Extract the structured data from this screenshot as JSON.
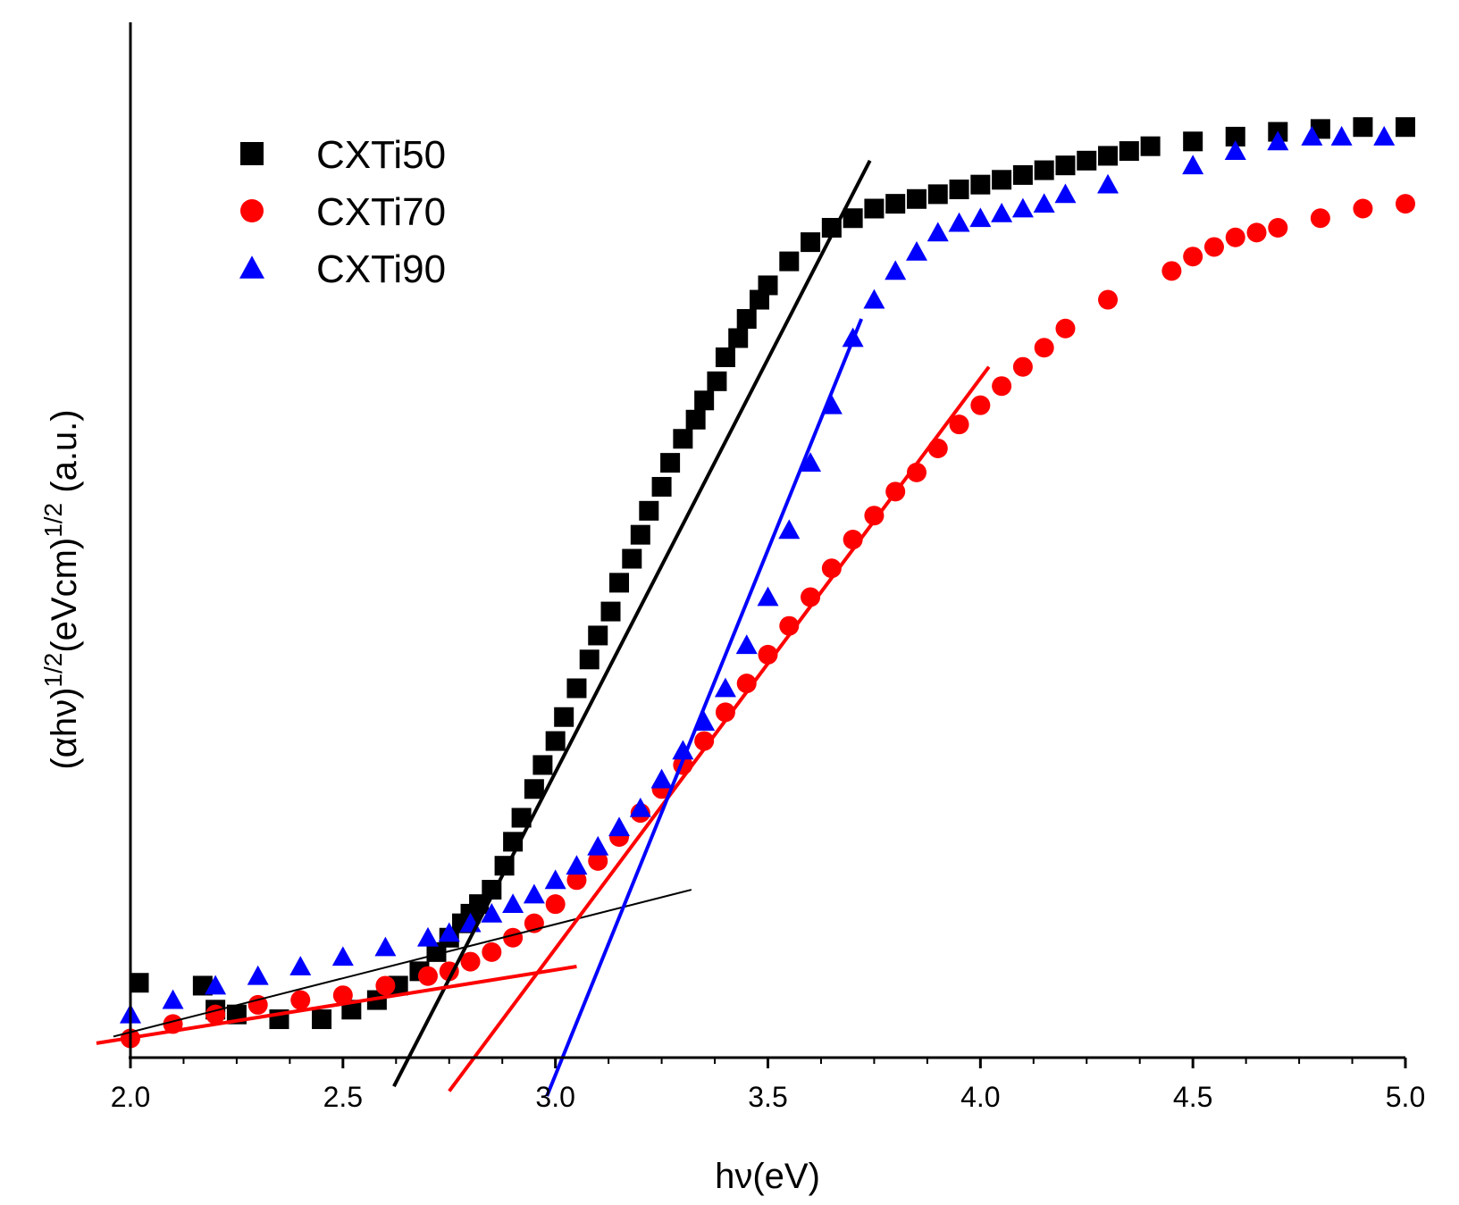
{
  "chart_data": {
    "type": "scatter",
    "title": "",
    "xlabel": "hν(eV)",
    "ylabel": "(αhν)1/2(eVcm)1/2 (a.u.)",
    "ylabel_parts": {
      "p1": "(αhν)",
      "s1": "1/2",
      "p2": "(eVcm)",
      "s2": "1/2",
      "p3": " (a.u.)"
    },
    "xlim": [
      2.0,
      5.0
    ],
    "ylim": [
      0,
      1.0
    ],
    "x_ticks": [
      "2.0",
      "2.5",
      "3.0",
      "3.5",
      "4.0",
      "4.5",
      "5.0"
    ],
    "y_ticks_shown": false,
    "grid": false,
    "legend_position": "top-left",
    "series": [
      {
        "name": "CXTi50",
        "marker": "square",
        "color": "#000000",
        "x": [
          2.02,
          2.17,
          2.2,
          2.25,
          2.35,
          2.45,
          2.52,
          2.58,
          2.63,
          2.68,
          2.72,
          2.75,
          2.78,
          2.8,
          2.82,
          2.85,
          2.88,
          2.9,
          2.92,
          2.95,
          2.97,
          3.0,
          3.02,
          3.05,
          3.08,
          3.1,
          3.13,
          3.15,
          3.18,
          3.2,
          3.22,
          3.25,
          3.27,
          3.3,
          3.33,
          3.35,
          3.38,
          3.4,
          3.43,
          3.45,
          3.48,
          3.5,
          3.55,
          3.6,
          3.65,
          3.7,
          3.75,
          3.8,
          3.85,
          3.9,
          3.95,
          4.0,
          4.05,
          4.1,
          4.15,
          4.2,
          4.25,
          4.3,
          4.35,
          4.4,
          4.5,
          4.6,
          4.7,
          4.8,
          4.9,
          5.0
        ],
        "y": [
          0.078,
          0.075,
          0.05,
          0.045,
          0.04,
          0.04,
          0.05,
          0.06,
          0.075,
          0.09,
          0.11,
          0.125,
          0.14,
          0.15,
          0.16,
          0.175,
          0.2,
          0.225,
          0.25,
          0.28,
          0.305,
          0.33,
          0.355,
          0.385,
          0.415,
          0.44,
          0.465,
          0.495,
          0.52,
          0.545,
          0.57,
          0.595,
          0.62,
          0.645,
          0.665,
          0.685,
          0.705,
          0.73,
          0.75,
          0.77,
          0.79,
          0.805,
          0.83,
          0.85,
          0.865,
          0.875,
          0.885,
          0.89,
          0.895,
          0.9,
          0.905,
          0.91,
          0.915,
          0.92,
          0.925,
          0.93,
          0.935,
          0.94,
          0.945,
          0.95,
          0.955,
          0.96,
          0.965,
          0.968,
          0.97,
          0.97
        ],
        "fit_lines": [
          {
            "x": [
              2.62,
              3.74
            ],
            "y": [
              -0.03,
              0.935
            ]
          },
          {
            "x": [
              1.96,
              3.32
            ],
            "y": [
              0.022,
              0.175
            ]
          }
        ]
      },
      {
        "name": "CXTi70",
        "marker": "circle",
        "color": "#ff0000",
        "x": [
          2.0,
          2.1,
          2.2,
          2.3,
          2.4,
          2.5,
          2.6,
          2.7,
          2.75,
          2.8,
          2.85,
          2.9,
          2.95,
          3.0,
          3.05,
          3.1,
          3.15,
          3.2,
          3.25,
          3.3,
          3.35,
          3.4,
          3.45,
          3.5,
          3.55,
          3.6,
          3.65,
          3.7,
          3.75,
          3.8,
          3.85,
          3.9,
          3.95,
          4.0,
          4.05,
          4.1,
          4.15,
          4.2,
          4.3,
          4.45,
          4.5,
          4.55,
          4.6,
          4.65,
          4.7,
          4.8,
          4.9,
          5.0
        ],
        "y": [
          0.02,
          0.035,
          0.045,
          0.055,
          0.06,
          0.065,
          0.075,
          0.085,
          0.09,
          0.1,
          0.11,
          0.125,
          0.14,
          0.16,
          0.185,
          0.205,
          0.23,
          0.255,
          0.28,
          0.305,
          0.33,
          0.36,
          0.39,
          0.42,
          0.45,
          0.48,
          0.51,
          0.54,
          0.565,
          0.59,
          0.61,
          0.635,
          0.66,
          0.68,
          0.7,
          0.72,
          0.74,
          0.76,
          0.79,
          0.82,
          0.835,
          0.845,
          0.855,
          0.86,
          0.865,
          0.875,
          0.885,
          0.89
        ],
        "fit_lines": [
          {
            "x": [
              2.75,
              4.02
            ],
            "y": [
              -0.035,
              0.72
            ]
          },
          {
            "x": [
              1.92,
              3.05
            ],
            "y": [
              0.015,
              0.095
            ]
          }
        ]
      },
      {
        "name": "CXTi90",
        "marker": "triangle",
        "color": "#0000ff",
        "x": [
          2.0,
          2.1,
          2.2,
          2.3,
          2.4,
          2.5,
          2.6,
          2.7,
          2.75,
          2.8,
          2.85,
          2.9,
          2.95,
          3.0,
          3.05,
          3.1,
          3.15,
          3.2,
          3.25,
          3.3,
          3.35,
          3.4,
          3.45,
          3.5,
          3.55,
          3.6,
          3.65,
          3.7,
          3.75,
          3.8,
          3.85,
          3.9,
          3.95,
          4.0,
          4.05,
          4.1,
          4.15,
          4.2,
          4.3,
          4.5,
          4.6,
          4.7,
          4.78,
          4.85,
          4.95
        ],
        "y": [
          0.045,
          0.06,
          0.075,
          0.085,
          0.095,
          0.105,
          0.115,
          0.125,
          0.13,
          0.14,
          0.15,
          0.16,
          0.17,
          0.185,
          0.2,
          0.22,
          0.24,
          0.26,
          0.29,
          0.32,
          0.35,
          0.385,
          0.43,
          0.48,
          0.55,
          0.62,
          0.68,
          0.75,
          0.79,
          0.82,
          0.84,
          0.86,
          0.87,
          0.875,
          0.88,
          0.885,
          0.89,
          0.9,
          0.91,
          0.93,
          0.945,
          0.955,
          0.96,
          0.96,
          0.96
        ],
        "fit_lines": [
          {
            "x": [
              2.98,
              3.72
            ],
            "y": [
              -0.04,
              0.77
            ]
          }
        ]
      }
    ]
  }
}
